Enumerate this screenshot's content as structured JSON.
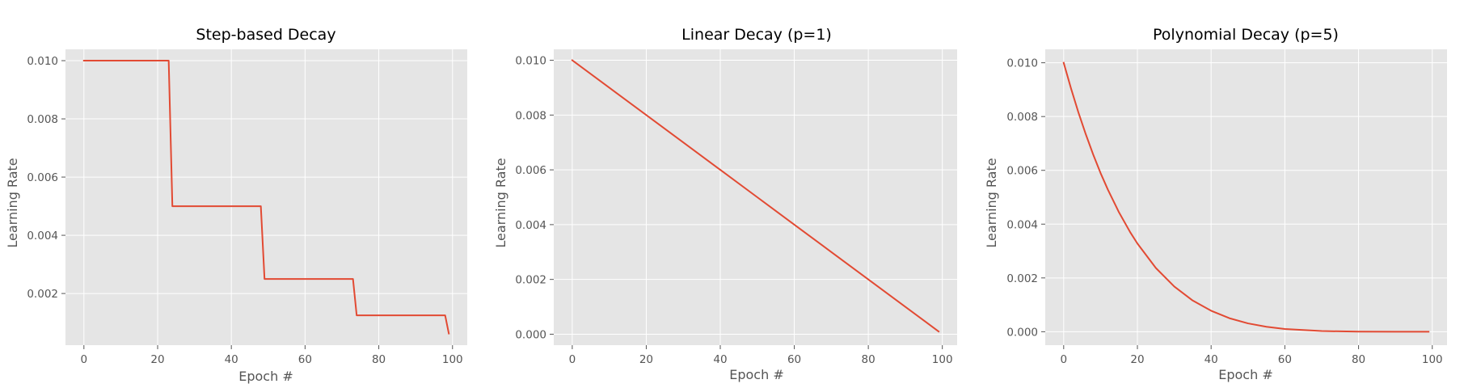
{
  "chart_data": [
    {
      "type": "line",
      "title": "Step-based Decay",
      "xlabel": "Epoch #",
      "ylabel": "Learning Rate",
      "xlim": [
        -5,
        104
      ],
      "ylim": [
        0.000225,
        0.01039
      ],
      "xticks": [
        0,
        20,
        40,
        60,
        80,
        100
      ],
      "yticks": [
        0.002,
        0.004,
        0.006,
        0.008,
        0.01
      ],
      "xtick_labels": [
        "0",
        "20",
        "40",
        "60",
        "80",
        "100"
      ],
      "ytick_labels": [
        "0.002",
        "0.004",
        "0.006",
        "0.008",
        "0.010"
      ],
      "grid": true,
      "color": "#E24A33",
      "series": [
        {
          "x": [
            0,
            23,
            24,
            48,
            49,
            73,
            74,
            98,
            99
          ],
          "y": [
            0.01,
            0.01,
            0.005,
            0.005,
            0.0025,
            0.0025,
            0.00125,
            0.00125,
            0.000625
          ]
        }
      ]
    },
    {
      "type": "line",
      "title": "Linear Decay (p=1)",
      "xlabel": "Epoch #",
      "ylabel": "Learning Rate",
      "xlim": [
        -5,
        104
      ],
      "ylim": [
        -0.0004,
        0.0104
      ],
      "xticks": [
        0,
        20,
        40,
        60,
        80,
        100
      ],
      "yticks": [
        0,
        0.002,
        0.004,
        0.006,
        0.008,
        0.01
      ],
      "xtick_labels": [
        "0",
        "20",
        "40",
        "60",
        "80",
        "100"
      ],
      "ytick_labels": [
        "0.000",
        "0.002",
        "0.004",
        "0.006",
        "0.008",
        "0.010"
      ],
      "grid": true,
      "color": "#E24A33",
      "series": [
        {
          "x": [
            0,
            10,
            20,
            30,
            40,
            50,
            60,
            70,
            80,
            90,
            99
          ],
          "y": [
            0.01,
            0.009,
            0.008,
            0.007,
            0.006,
            0.005,
            0.004,
            0.003,
            0.002,
            0.001,
            0.0001
          ]
        }
      ]
    },
    {
      "type": "line",
      "title": "Polynomial Decay (p=5)",
      "xlabel": "Epoch #",
      "ylabel": "Learning Rate",
      "xlim": [
        -5,
        104
      ],
      "ylim": [
        -0.0005,
        0.0105
      ],
      "xticks": [
        0,
        20,
        40,
        60,
        80,
        100
      ],
      "yticks": [
        0,
        0.002,
        0.004,
        0.006,
        0.008,
        0.01
      ],
      "xtick_labels": [
        "0",
        "20",
        "40",
        "60",
        "80",
        "100"
      ],
      "ytick_labels": [
        "0.000",
        "0.002",
        "0.004",
        "0.006",
        "0.008",
        "0.010"
      ],
      "grid": true,
      "color": "#E24A33",
      "series": [
        {
          "x": [
            0,
            2,
            4,
            6,
            8,
            10,
            12,
            15,
            18,
            20,
            25,
            30,
            35,
            40,
            45,
            50,
            55,
            60,
            70,
            80,
            90,
            99
          ],
          "y": [
            0.01,
            0.00904,
            0.00815,
            0.00734,
            0.00659,
            0.0059,
            0.00528,
            0.00444,
            0.00371,
            0.00328,
            0.00237,
            0.00168,
            0.00116,
            0.00078,
            0.0005,
            0.00031,
            0.000185,
            0.000102,
            2.43e-05,
            3.2e-06,
            1e-07,
            0
          ]
        }
      ]
    }
  ]
}
